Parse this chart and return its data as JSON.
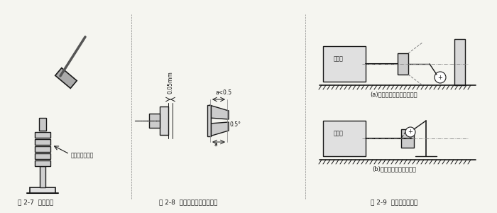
{
  "bg_color": "#f5f5f0",
  "line_color": "#1a1a1a",
  "fig_labels": [
    "图 2-7  注意事项",
    "图 2-8  联轴器之间的安装精度",
    "图 2-9  安装精度的检查"
  ],
  "label_27": "此处应垫一铜棒",
  "label_28_gap": "0.05mm",
  "label_28_angle": "0.5°",
  "label_28_a": "a",
  "label_28_a_val": "a<0.5",
  "label_29a": "(a)用百分表检查联轴器端面",
  "label_29b": "(b)用百分表检查支座端面",
  "label_29_motor": "原动机"
}
